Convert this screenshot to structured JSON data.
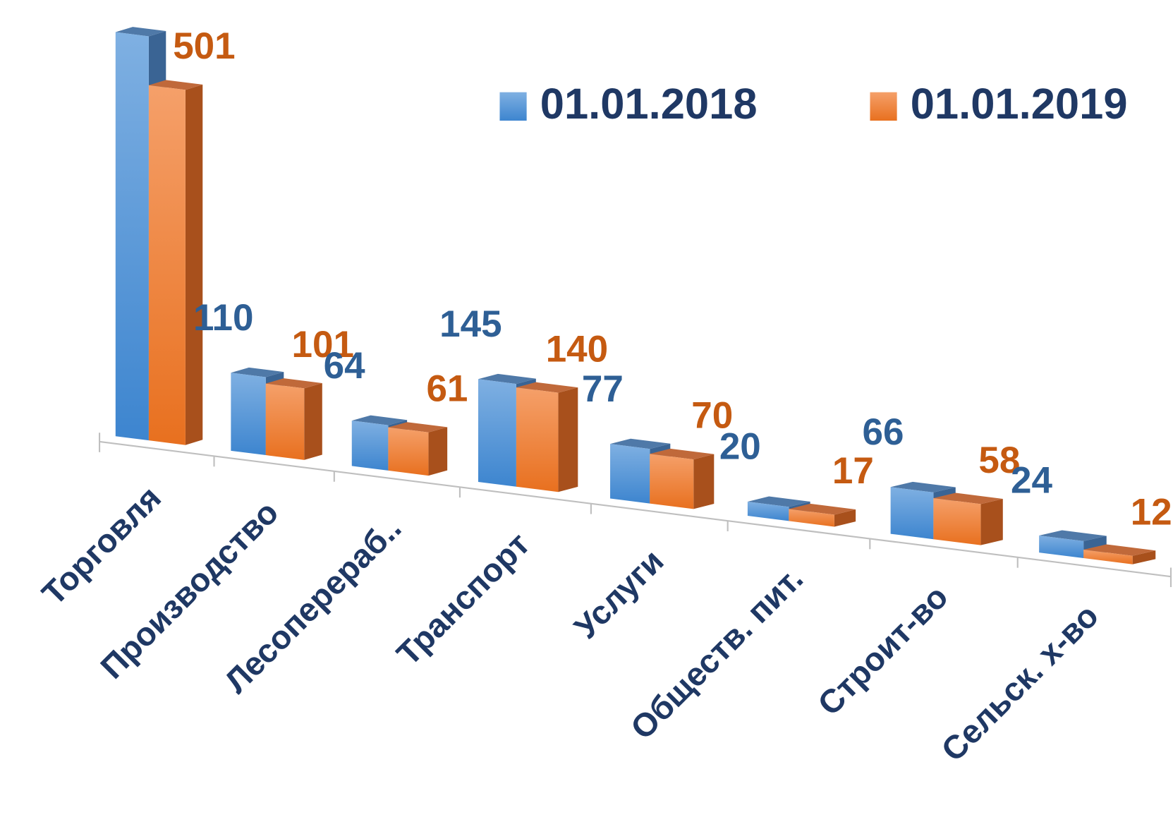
{
  "chart_data": {
    "type": "bar",
    "categories": [
      "Торговля",
      "Производство",
      "Лесоперераб..",
      "Транспорт",
      "Услуги",
      "Обществ. пит.",
      "Строит-во",
      "Сельск. х-во"
    ],
    "series": [
      {
        "name": "01.01.2018",
        "color": "#5b9bd5",
        "label_color": "#2e5f95",
        "values": [
          570,
          110,
          64,
          145,
          77,
          20,
          66,
          24
        ]
      },
      {
        "name": "01.01.2019",
        "color": "#ed7d31",
        "label_color": "#c55a11",
        "values": [
          501,
          101,
          61,
          140,
          70,
          17,
          58,
          12
        ]
      }
    ],
    "legend": "top-right"
  }
}
